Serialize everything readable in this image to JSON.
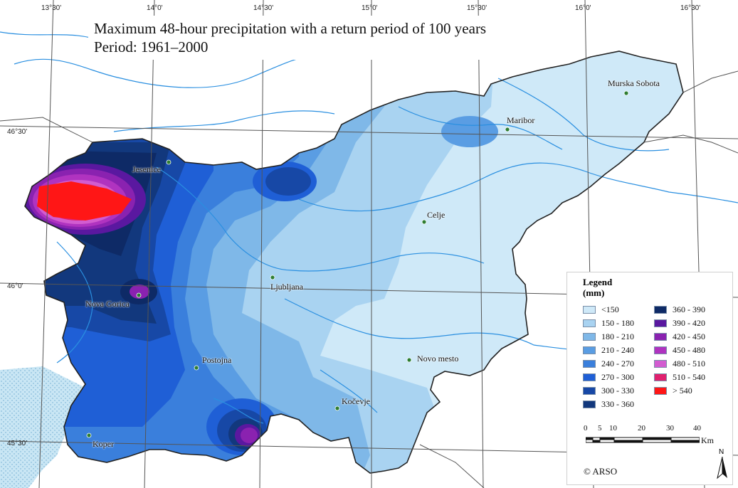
{
  "title": {
    "line1": "Maximum 48-hour precipitation with a return period of 100 years",
    "line2": "Period: 1961–2000"
  },
  "coordinates": {
    "longitude": [
      "13°30'",
      "14°0'",
      "14°30'",
      "15°0'",
      "15°30'",
      "16°0'",
      "16°30'"
    ],
    "latitude": [
      "46°30'",
      "46°0'",
      "45°30'"
    ]
  },
  "towns": [
    {
      "id": "murska-sobota",
      "name": "Murska Sobota"
    },
    {
      "id": "maribor",
      "name": "Maribor"
    },
    {
      "id": "jesenice",
      "name": "Jesenice"
    },
    {
      "id": "celje",
      "name": "Celje"
    },
    {
      "id": "ljubljana",
      "name": "Ljubljana"
    },
    {
      "id": "nova-gorica",
      "name": "Nova Gorica"
    },
    {
      "id": "novo-mesto",
      "name": "Novo mesto"
    },
    {
      "id": "postojna",
      "name": "Postojna"
    },
    {
      "id": "kocevje",
      "name": "Kočevje"
    },
    {
      "id": "koper",
      "name": "Koper"
    }
  ],
  "legend": {
    "title_line1": "Legend",
    "title_line2": "(mm)",
    "classes": [
      {
        "label": "<150",
        "color": "#cfe9f8"
      },
      {
        "label": "150 - 180",
        "color": "#a9d3f1"
      },
      {
        "label": "180 - 210",
        "color": "#7fb8e8"
      },
      {
        "label": "210 - 240",
        "color": "#5a9de3"
      },
      {
        "label": "240 - 270",
        "color": "#3a7fdc"
      },
      {
        "label": "270 - 300",
        "color": "#1f5fd6"
      },
      {
        "label": "300 - 330",
        "color": "#1748a6"
      },
      {
        "label": "330 - 360",
        "color": "#12387d"
      },
      {
        "label": "360 - 390",
        "color": "#0e2a66"
      },
      {
        "label": "390 - 420",
        "color": "#5a18a0"
      },
      {
        "label": "420 - 450",
        "color": "#8a22b0"
      },
      {
        "label": "450 - 480",
        "color": "#b033c0"
      },
      {
        "label": "480 - 510",
        "color": "#d25cd0"
      },
      {
        "label": "510 - 540",
        "color": "#e0206e"
      },
      {
        "label": "> 540",
        "color": "#ff1616"
      }
    ]
  },
  "scale_bar": {
    "ticks": [
      "0",
      "5",
      "10",
      "20",
      "30",
      "40"
    ],
    "unit": "Km"
  },
  "north_arrow": {
    "label": "N"
  },
  "credit": "© ARSO",
  "colors": {
    "graticule": "#555555",
    "border": "#222222",
    "rivers": "#2a8fe0",
    "sea": "#c9e6f4"
  }
}
